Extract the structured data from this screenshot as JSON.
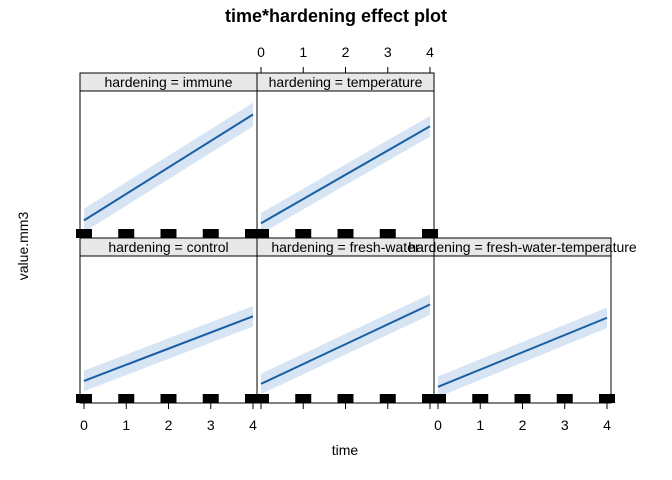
{
  "chart_data": {
    "type": "line",
    "title": "time*hardening effect plot",
    "xlabel": "time",
    "ylabel": "value.mm3",
    "x_ticks": [
      0,
      1,
      2,
      3,
      4
    ],
    "xlim": [
      0,
      4
    ],
    "ylim": [
      0,
      1
    ],
    "band_color": "#d6e4f4",
    "line_color": "#1a5fa3",
    "rug_x": [
      0,
      1,
      2,
      3,
      4
    ],
    "panels": [
      {
        "strip": "hardening = immune",
        "row": 1,
        "col": 0,
        "line": [
          0.12,
          0.84
        ],
        "lower": [
          0.04,
          0.76
        ],
        "upper": [
          0.2,
          0.92
        ]
      },
      {
        "strip": "hardening = temperature",
        "row": 1,
        "col": 1,
        "line": [
          0.1,
          0.76
        ],
        "lower": [
          0.03,
          0.69
        ],
        "upper": [
          0.17,
          0.83
        ]
      },
      {
        "strip": "hardening = control",
        "row": 0,
        "col": 0,
        "line": [
          0.15,
          0.59
        ],
        "lower": [
          0.08,
          0.52
        ],
        "upper": [
          0.22,
          0.66
        ]
      },
      {
        "strip": "hardening = fresh-water",
        "row": 0,
        "col": 1,
        "line": [
          0.13,
          0.67
        ],
        "lower": [
          0.06,
          0.6
        ],
        "upper": [
          0.2,
          0.74
        ]
      },
      {
        "strip": "hardening = fresh-water-temperature",
        "row": 0,
        "col": 2,
        "line": [
          0.11,
          0.58
        ],
        "lower": [
          0.04,
          0.51
        ],
        "upper": [
          0.18,
          0.65
        ]
      }
    ]
  }
}
